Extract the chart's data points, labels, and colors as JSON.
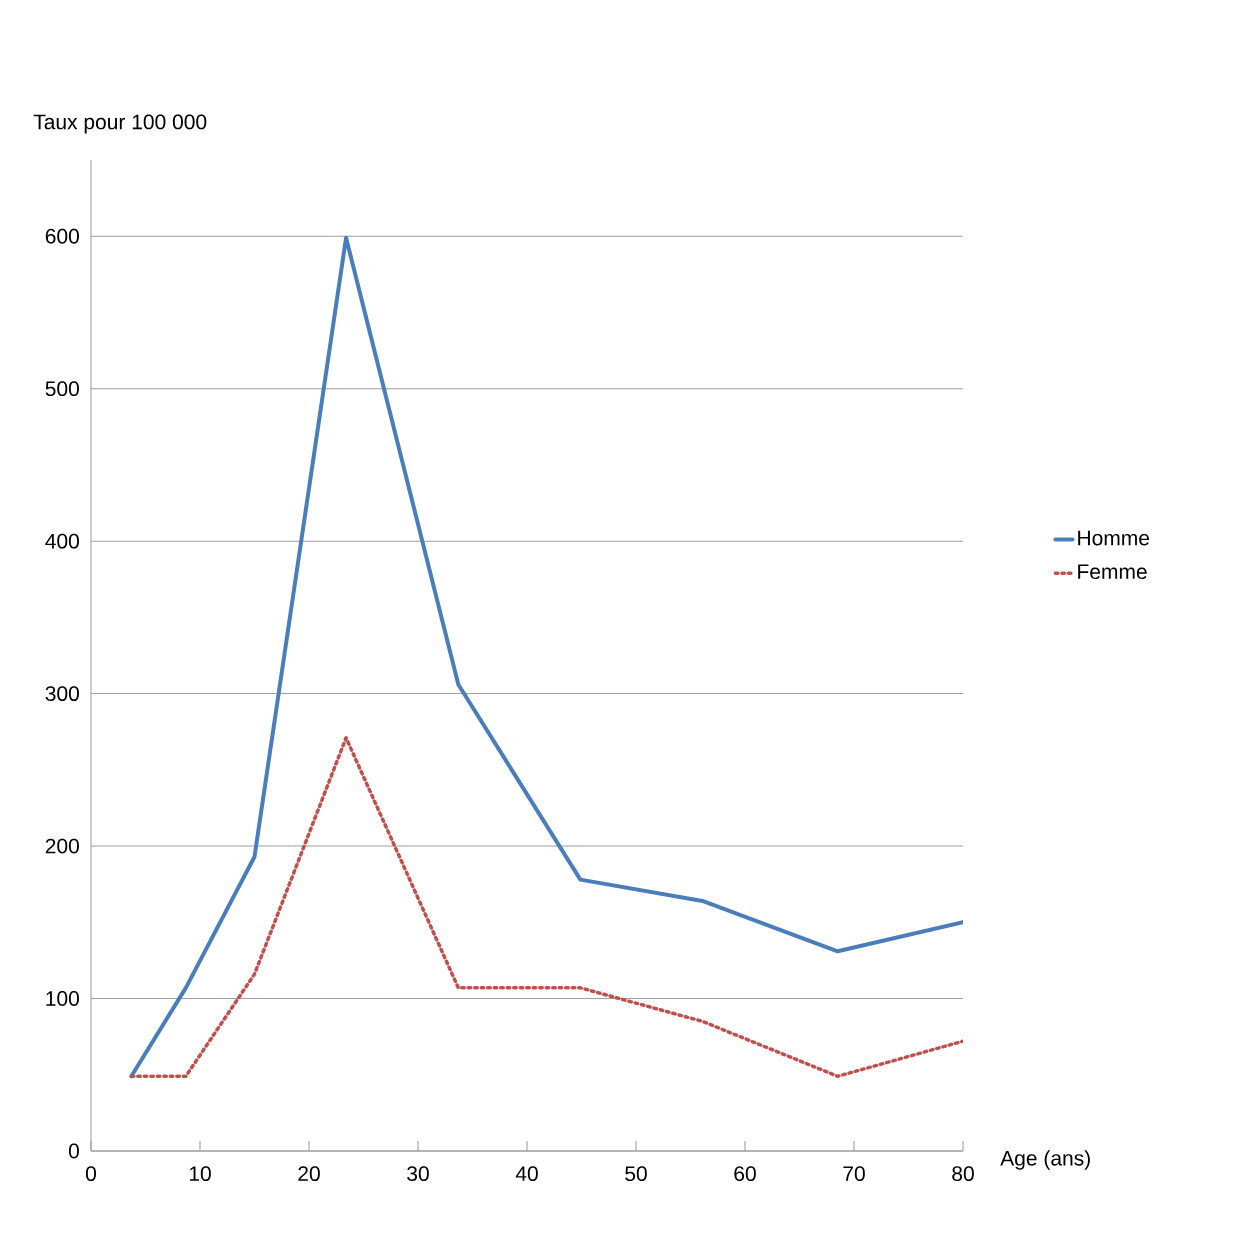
{
  "chart_data": {
    "type": "line",
    "xlabel": "Age (ans)",
    "ylabel": "Taux pour  100 000",
    "xlim": [
      0,
      80
    ],
    "ylim": [
      0,
      650
    ],
    "xticks": [
      0,
      10,
      20,
      30,
      40,
      50,
      60,
      70,
      80
    ],
    "yticks": [
      0,
      100,
      200,
      300,
      400,
      500,
      600
    ],
    "grid": "y",
    "legend": "right",
    "marker": "none",
    "series": [
      {
        "name": "Homme",
        "color": "#4a7ebb",
        "line_style": "solid",
        "x": [
          3.7,
          8.7,
          15.0,
          23.4,
          33.7,
          44.9,
          56.1,
          68.5,
          80
        ],
        "values": [
          49,
          107,
          193,
          599,
          306,
          178,
          164,
          131,
          150
        ]
      },
      {
        "name": "Femme",
        "color": "#c0504d",
        "line_style": "dotted",
        "x": [
          3.7,
          8.7,
          15.0,
          23.4,
          33.7,
          44.9,
          56.1,
          68.5,
          80
        ],
        "values": [
          49,
          49,
          116,
          271,
          107,
          107,
          85,
          49,
          72
        ]
      }
    ]
  }
}
